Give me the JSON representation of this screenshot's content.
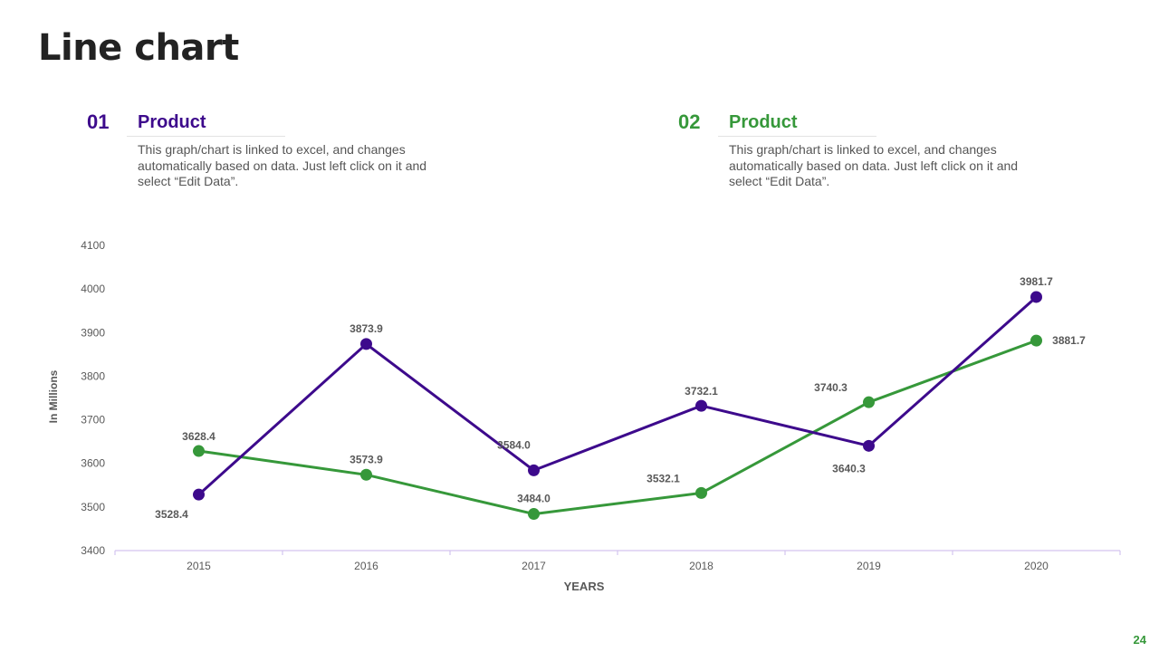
{
  "slide": {
    "title": "Line chart",
    "page_number": "24"
  },
  "colors": {
    "purple": "#3d0a8c",
    "green": "#36983a",
    "axis": "#d3c4ef"
  },
  "blocks": [
    {
      "num": "01",
      "heading": "Product",
      "desc": "This graph/chart is linked to excel, and changes automatically based on data. Just left click on it and select “Edit Data”."
    },
    {
      "num": "02",
      "heading": "Product",
      "desc": "This graph/chart is linked to excel, and changes automatically based on data. Just left click on it and select “Edit Data”."
    }
  ],
  "chart_data": {
    "type": "line",
    "title": "",
    "xlabel": "YEARS",
    "ylabel": "In Millions",
    "categories": [
      "2015",
      "2016",
      "2017",
      "2018",
      "2019",
      "2020"
    ],
    "ylim": [
      3400,
      4100
    ],
    "yticks": [
      3400,
      3500,
      3600,
      3700,
      3800,
      3900,
      4000,
      4100
    ],
    "grid": false,
    "series": [
      {
        "name": "Product 01",
        "color": "#3d0a8c",
        "values": [
          3528.4,
          3873.9,
          3584.0,
          3732.1,
          3640.3,
          3981.7
        ],
        "labels": [
          "3528.4",
          "3873.9",
          "3584.0",
          "3732.1",
          "3640.3",
          "3981.7"
        ]
      },
      {
        "name": "Product 02",
        "color": "#36983a",
        "values": [
          3628.4,
          3573.9,
          3484.0,
          3532.1,
          3740.3,
          3881.7
        ],
        "labels": [
          "3628.4",
          "3573.9",
          "3484.0",
          "3532.1",
          "3740.3",
          "3881.7"
        ]
      }
    ]
  }
}
